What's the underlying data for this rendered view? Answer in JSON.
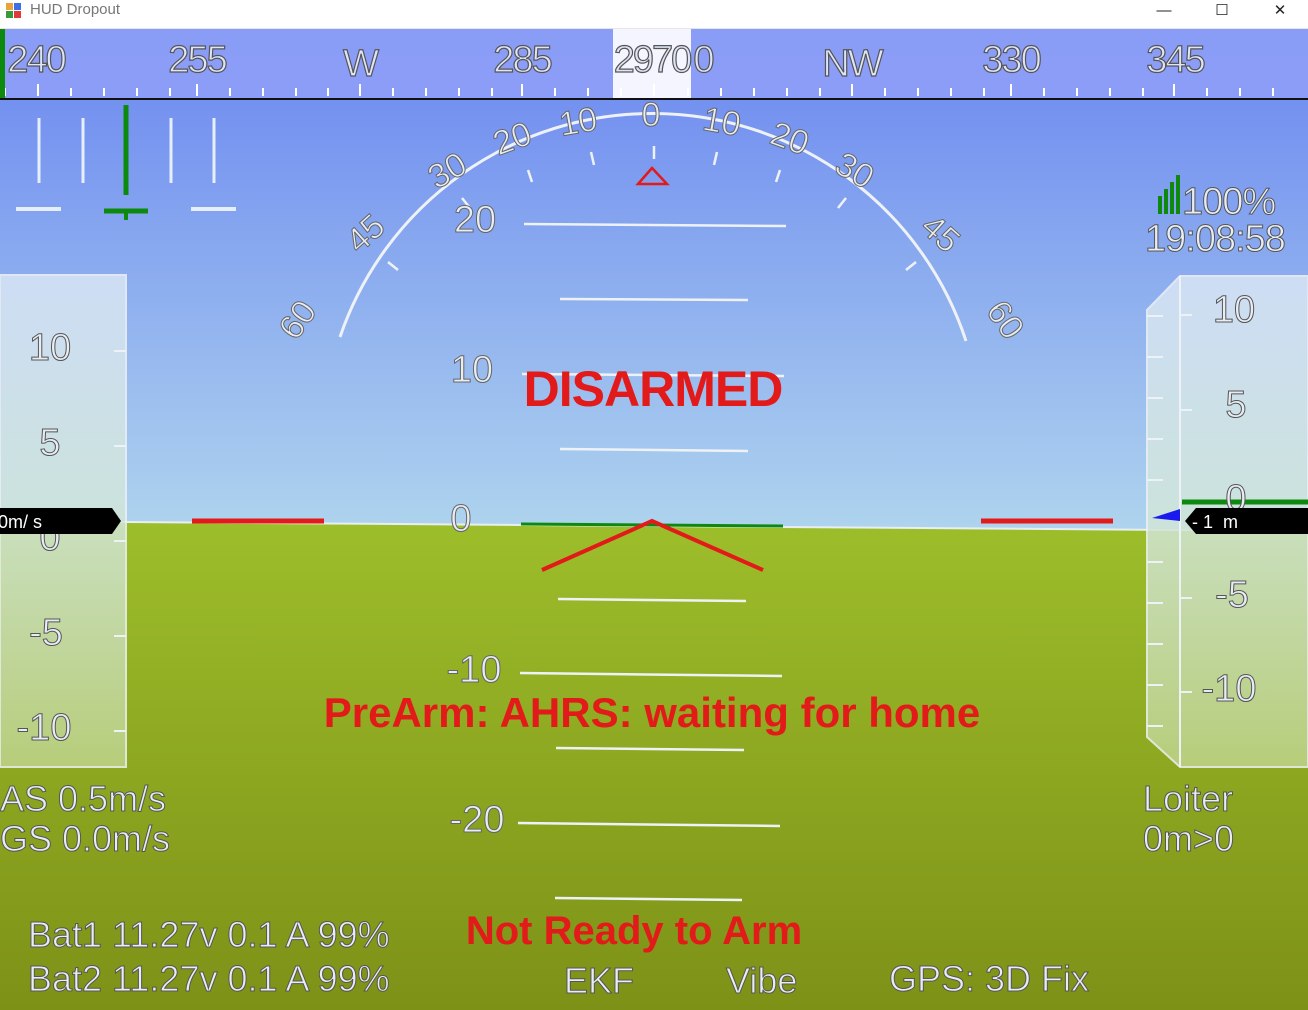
{
  "window": {
    "title": "HUD Dropout",
    "minimize_glyph": "—",
    "maximize_glyph": "☐",
    "close_glyph": "✕",
    "app_icon": "app-window-icon"
  },
  "heading": {
    "labels": [
      "240",
      "255",
      "W",
      "285",
      "2970",
      "0",
      "NW",
      "330",
      "345"
    ],
    "current_heading": "297"
  },
  "roll_scale": {
    "labels": [
      "60",
      "45",
      "30",
      "20",
      "10",
      "0",
      "10",
      "20",
      "30",
      "45",
      "60"
    ]
  },
  "pitch_ladder": {
    "labels": [
      "20",
      "10",
      "0",
      "-10",
      "-20"
    ]
  },
  "airspeed_tape": {
    "labels": [
      "10",
      "5",
      "0",
      "-5",
      "-10"
    ],
    "readout": "0m/ s"
  },
  "altitude_tape": {
    "labels": [
      "10",
      "5",
      "0",
      "-5",
      "-10"
    ],
    "readout": "- 1  m"
  },
  "status": {
    "disarmed": "DISARMED",
    "prearm_message": "PreArm: AHRS: waiting for home",
    "not_ready": "Not Ready to Arm"
  },
  "telemetry": {
    "link_quality": "100%",
    "time": "19:08:58",
    "airspeed": "AS 0.5m/s",
    "groundspeed": "GS 0.0m/s",
    "flight_mode": "Loiter",
    "waypoint": "0m>0",
    "bat1": "Bat1 11.27v 0.1 A 99%",
    "bat2": "Bat2 11.27v 0.1 A 99%",
    "ekf": "EKF",
    "vibe": "Vibe",
    "gps": "GPS: 3D Fix"
  },
  "colors": {
    "sky_top": "#6a86f0",
    "sky_bottom": "#b9e1ec",
    "ground_top": "#9cbd2a",
    "ground_bottom": "#7f9418",
    "warning_red": "#e21a1a",
    "indicator_green": "#0d8a0d",
    "scale_white": "#ffffff"
  }
}
